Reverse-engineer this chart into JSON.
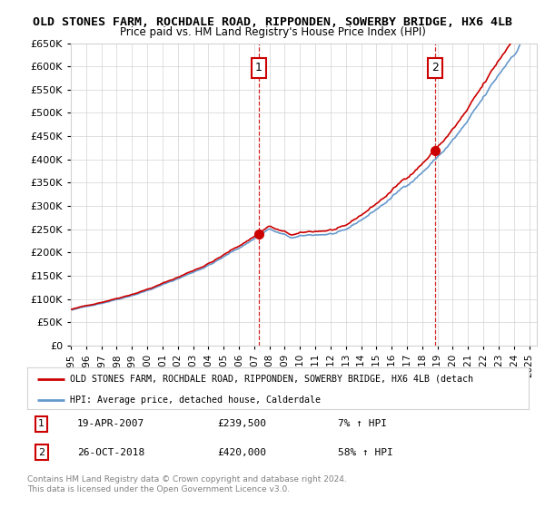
{
  "title1": "OLD STONES FARM, ROCHDALE ROAD, RIPPONDEN, SOWERBY BRIDGE, HX6 4LB",
  "title2": "Price paid vs. HM Land Registry's House Price Index (HPI)",
  "ylim": [
    0,
    650000
  ],
  "yticks": [
    0,
    50000,
    100000,
    150000,
    200000,
    250000,
    300000,
    350000,
    400000,
    450000,
    500000,
    550000,
    600000,
    650000
  ],
  "xlim_start": 1995.0,
  "xlim_end": 2025.5,
  "sale1_x": 2007.3,
  "sale1_y": 239500,
  "sale1_label": "1",
  "sale1_date": "19-APR-2007",
  "sale1_price": "£239,500",
  "sale1_hpi": "7% ↑ HPI",
  "sale2_x": 2018.83,
  "sale2_y": 420000,
  "sale2_label": "2",
  "sale2_date": "26-OCT-2018",
  "sale2_price": "£420,000",
  "sale2_hpi": "58% ↑ HPI",
  "red_color": "#cc0000",
  "blue_color": "#6699cc",
  "legend_label1": "OLD STONES FARM, ROCHDALE ROAD, RIPPONDEN, SOWERBY BRIDGE, HX6 4LB (detach",
  "legend_label2": "HPI: Average price, detached house, Calderdale",
  "footer1": "Contains HM Land Registry data © Crown copyright and database right 2024.",
  "footer2": "This data is licensed under the Open Government Licence v3.0.",
  "n_points": 366
}
